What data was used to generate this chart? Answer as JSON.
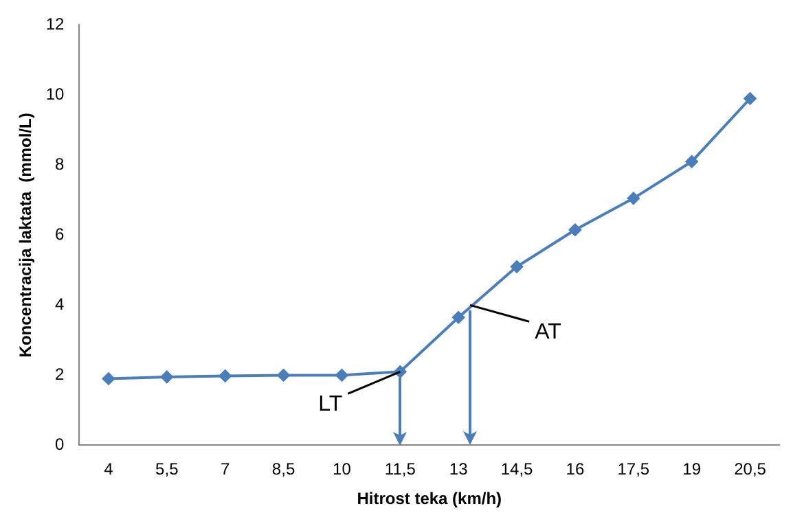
{
  "chart_data": {
    "type": "line",
    "xlabel": "Hitrost teka (km/h)",
    "ylabel": "Koncentracija laktata  (mmol/L)",
    "x": [
      4,
      5.5,
      7,
      8.5,
      10,
      11.5,
      13,
      14.5,
      16,
      17.5,
      19,
      20.5
    ],
    "series": [
      {
        "color": "#4a7ebb",
        "values": [
          1.9,
          1.95,
          1.98,
          2.0,
          2.0,
          2.1,
          3.65,
          5.1,
          6.15,
          7.05,
          8.1,
          9.9
        ]
      }
    ],
    "xlim": [
      3.25,
      21.25
    ],
    "xticks": [
      {
        "value": 4,
        "label": "4"
      },
      {
        "value": 5.5,
        "label": "5,5"
      },
      {
        "value": 7,
        "label": "7"
      },
      {
        "value": 8.5,
        "label": "8,5"
      },
      {
        "value": 10,
        "label": "10"
      },
      {
        "value": 11.5,
        "label": "11,5"
      },
      {
        "value": 13,
        "label": "13"
      },
      {
        "value": 14.5,
        "label": "14,5"
      },
      {
        "value": 16,
        "label": "16"
      },
      {
        "value": 17.5,
        "label": "17,5"
      },
      {
        "value": 19,
        "label": "19"
      },
      {
        "value": 20.5,
        "label": "20,5"
      }
    ],
    "ylim": [
      0,
      12
    ],
    "yticks": [
      0,
      2,
      4,
      6,
      8,
      10,
      12
    ],
    "grid": false,
    "legend": false,
    "marker": "diamond",
    "line_style": "solid",
    "annotations": [
      {
        "text": "LT",
        "x": 11.5,
        "y": 2.1
      },
      {
        "text": "AT",
        "x": 13.3,
        "y": 4.0
      }
    ]
  }
}
